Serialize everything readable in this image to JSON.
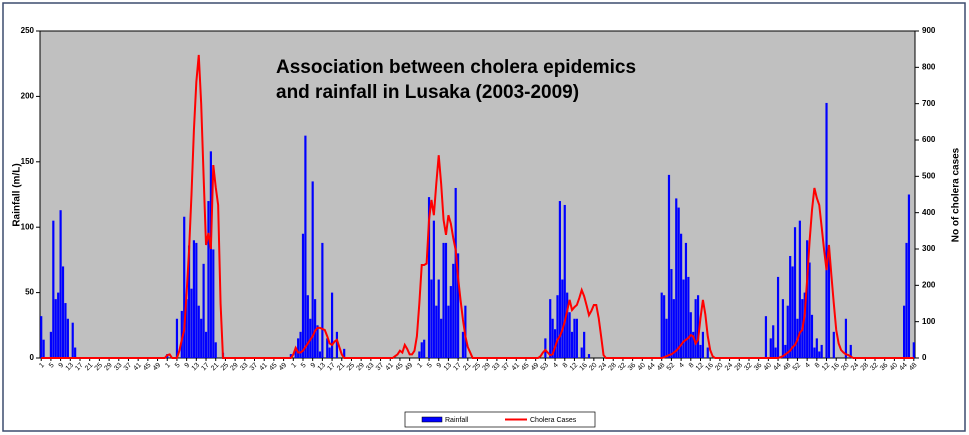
{
  "chart_data": {
    "type": "bar_line",
    "title_lines": [
      "Association between cholera epidemics",
      "and rainfall in Lusaka (2003-2009)"
    ],
    "y_label": "Rainfall (m/L)",
    "y2_label": "No of cholera cases",
    "ylim": [
      0,
      250
    ],
    "yticks": [
      0,
      50,
      100,
      150,
      200,
      250
    ],
    "y2lim": [
      0,
      900
    ],
    "y2ticks": [
      0,
      100,
      200,
      300,
      400,
      500,
      600,
      700,
      800,
      900
    ],
    "grid": false,
    "legend": "bottom",
    "categories": [
      1,
      null,
      null,
      null,
      5,
      null,
      null,
      null,
      9,
      null,
      null,
      null,
      13,
      null,
      null,
      null,
      17,
      null,
      null,
      null,
      21,
      null,
      null,
      null,
      25,
      null,
      null,
      null,
      29,
      null,
      null,
      null,
      33,
      null,
      null,
      null,
      37,
      null,
      null,
      null,
      41,
      null,
      null,
      null,
      45,
      null,
      null,
      null,
      49,
      null,
      null,
      null,
      1,
      null,
      null,
      null,
      5,
      null,
      null,
      null,
      9,
      null,
      null,
      null,
      13,
      null,
      null,
      null,
      17,
      null,
      null,
      null,
      21,
      null,
      null,
      null,
      25,
      null,
      null,
      null,
      29,
      null,
      null,
      null,
      33,
      null,
      null,
      null,
      37,
      null,
      null,
      null,
      41,
      null,
      null,
      null,
      45,
      null,
      null,
      null,
      49,
      null,
      null,
      null,
      1,
      null,
      null,
      null,
      5,
      null,
      null,
      null,
      9,
      null,
      null,
      null,
      13,
      null,
      null,
      null,
      17,
      null,
      null,
      null,
      21,
      null,
      null,
      null,
      25,
      null,
      null,
      null,
      29,
      null,
      null,
      null,
      33,
      null,
      null,
      null,
      37,
      null,
      null,
      null,
      41,
      null,
      null,
      null,
      45,
      null,
      null,
      null,
      49,
      null,
      null,
      null,
      1,
      null,
      null,
      null,
      5,
      null,
      null,
      null,
      9,
      null,
      null,
      null,
      13,
      null,
      null,
      null,
      17,
      null,
      null,
      null,
      21,
      null,
      null,
      null,
      25,
      null,
      null,
      null,
      29,
      null,
      null,
      null,
      33,
      null,
      null,
      null,
      37,
      null,
      null,
      null,
      41,
      null,
      null,
      null,
      45,
      null,
      null,
      null,
      49,
      null,
      null,
      null,
      53,
      null,
      null,
      null,
      4,
      null,
      null,
      null,
      8,
      null,
      null,
      null,
      12,
      null,
      null,
      null,
      16,
      null,
      null,
      null,
      20,
      null,
      null,
      null,
      24,
      null,
      null,
      null,
      28,
      null,
      null,
      null,
      32,
      null,
      null,
      null,
      36,
      null,
      null,
      null,
      40,
      null,
      null,
      null,
      44,
      null,
      null,
      null,
      48,
      null,
      null,
      null,
      52,
      null,
      null,
      null,
      4,
      null,
      null,
      null,
      8,
      null,
      null,
      null,
      12,
      null,
      null,
      null,
      16,
      null,
      null,
      null,
      20,
      null,
      null,
      null,
      24,
      null,
      null,
      null,
      28,
      null,
      null,
      null,
      32,
      null,
      null,
      null,
      36,
      null,
      null,
      null,
      40,
      null,
      null,
      null,
      44,
      null,
      null,
      null,
      48,
      null,
      null,
      null,
      52,
      null,
      null,
      null,
      4,
      null,
      null,
      null,
      8,
      null,
      null,
      null,
      12,
      null,
      null,
      null,
      16,
      null,
      null,
      null,
      20,
      null,
      null,
      null,
      24,
      null,
      null,
      null,
      28,
      null,
      null,
      null,
      32,
      null,
      null,
      null,
      36,
      null,
      null,
      null,
      40,
      null,
      null,
      null,
      44,
      null,
      null,
      null,
      48
    ],
    "series": [
      {
        "name": "Rainfall",
        "type": "bar",
        "color": "#0000ff",
        "values": [
          32,
          14,
          0,
          0,
          20,
          105,
          45,
          50,
          113,
          70,
          42,
          30,
          0,
          27,
          8,
          0,
          0,
          0,
          0,
          0,
          0,
          0,
          0,
          0,
          0,
          0,
          0,
          0,
          0,
          0,
          0,
          0,
          0,
          0,
          0,
          0,
          0,
          0,
          0,
          0,
          0,
          0,
          0,
          0,
          0,
          0,
          0,
          0,
          0,
          0,
          0,
          0,
          3,
          0,
          0,
          0,
          30,
          0,
          36,
          108,
          45,
          86,
          53,
          90,
          88,
          40,
          30,
          72,
          20,
          120,
          158,
          83,
          12,
          0,
          0,
          4,
          0,
          0,
          0,
          0,
          0,
          0,
          0,
          0,
          0,
          0,
          0,
          0,
          0,
          0,
          0,
          0,
          0,
          0,
          0,
          0,
          0,
          0,
          0,
          0,
          0,
          0,
          0,
          3,
          0,
          8,
          15,
          20,
          95,
          170,
          48,
          30,
          135,
          45,
          25,
          5,
          88,
          0,
          15,
          8,
          50,
          0,
          20,
          0,
          0,
          7,
          0,
          0,
          0,
          0,
          0,
          0,
          0,
          0,
          0,
          0,
          0,
          0,
          0,
          0,
          0,
          0,
          0,
          0,
          0,
          0,
          0,
          0,
          0,
          0,
          0,
          0,
          0,
          0,
          0,
          0,
          5,
          12,
          14,
          0,
          123,
          60,
          105,
          40,
          60,
          30,
          88,
          88,
          40,
          55,
          72,
          130,
          80,
          0,
          20,
          40,
          0,
          0,
          0,
          0,
          0,
          0,
          0,
          0,
          0,
          0,
          0,
          0,
          0,
          0,
          0,
          0,
          0,
          0,
          0,
          0,
          0,
          0,
          0,
          0,
          0,
          0,
          0,
          0,
          0,
          0,
          0,
          0,
          15,
          0,
          45,
          30,
          22,
          48,
          120,
          60,
          117,
          50,
          35,
          20,
          30,
          30,
          0,
          8,
          20,
          0,
          3,
          0,
          0,
          0,
          0,
          0,
          0,
          0,
          0,
          0,
          0,
          0,
          0,
          0,
          0,
          0,
          0,
          0,
          0,
          0,
          0,
          0,
          0,
          0,
          0,
          0,
          0,
          0,
          0,
          0,
          50,
          48,
          30,
          140,
          68,
          45,
          122,
          115,
          95,
          60,
          88,
          62,
          35,
          20,
          45,
          48,
          10,
          20,
          0,
          8,
          0,
          0,
          0,
          0,
          0,
          0,
          0,
          0,
          0,
          0,
          0,
          0,
          0,
          0,
          0,
          0,
          0,
          0,
          0,
          0,
          0,
          0,
          0,
          32,
          0,
          15,
          25,
          8,
          62,
          0,
          45,
          10,
          40,
          78,
          70,
          100,
          30,
          105,
          45,
          50,
          90,
          73,
          33,
          8,
          15,
          5,
          10,
          0,
          195,
          83,
          0,
          20,
          0,
          0,
          0,
          0,
          30,
          0,
          10,
          0,
          0,
          0,
          0,
          0,
          0,
          0,
          0,
          0,
          0,
          0,
          0,
          0,
          0,
          0,
          0,
          0,
          0,
          0,
          0,
          0,
          40,
          88,
          125,
          0,
          12
        ]
      },
      {
        "name": "Cholera Cases",
        "type": "line",
        "axis": "y2",
        "color": "#ff0000",
        "values": [
          0,
          0,
          0,
          0,
          0,
          0,
          0,
          0,
          0,
          0,
          0,
          0,
          0,
          0,
          0,
          0,
          0,
          0,
          0,
          0,
          0,
          0,
          0,
          0,
          0,
          0,
          0,
          0,
          0,
          0,
          0,
          0,
          0,
          0,
          0,
          0,
          0,
          0,
          0,
          0,
          0,
          0,
          0,
          0,
          0,
          0,
          0,
          0,
          0,
          0,
          0,
          0,
          8,
          10,
          0,
          0,
          0,
          20,
          50,
          77,
          180,
          297,
          450,
          627,
          760,
          834,
          700,
          500,
          311,
          344,
          300,
          531,
          470,
          421,
          150,
          0,
          0,
          0,
          0,
          0,
          0,
          0,
          0,
          0,
          0,
          0,
          0,
          0,
          0,
          0,
          0,
          0,
          0,
          0,
          0,
          0,
          0,
          0,
          0,
          0,
          0,
          0,
          0,
          0,
          10,
          28,
          15,
          15,
          20,
          30,
          40,
          50,
          60,
          75,
          83,
          83,
          80,
          77,
          60,
          40,
          36,
          45,
          50,
          30,
          10,
          0,
          0,
          0,
          0,
          0,
          0,
          0,
          0,
          0,
          0,
          0,
          0,
          0,
          0,
          0,
          0,
          0,
          0,
          0,
          0,
          0,
          5,
          10,
          20,
          15,
          36,
          25,
          10,
          10,
          20,
          60,
          150,
          256,
          256,
          260,
          380,
          435,
          393,
          480,
          558,
          480,
          380,
          339,
          393,
          370,
          330,
          297,
          220,
          160,
          105,
          60,
          30,
          15,
          0,
          0,
          0,
          0,
          0,
          0,
          0,
          0,
          0,
          0,
          0,
          0,
          0,
          0,
          0,
          0,
          0,
          0,
          0,
          0,
          0,
          0,
          0,
          0,
          0,
          0,
          0,
          0,
          5,
          15,
          22,
          15,
          8,
          10,
          30,
          50,
          60,
          77,
          100,
          130,
          160,
          132,
          140,
          146,
          165,
          187,
          170,
          145,
          118,
          130,
          146,
          146,
          110,
          60,
          8,
          0,
          0,
          0,
          0,
          0,
          0,
          0,
          0,
          0,
          0,
          0,
          0,
          0,
          0,
          0,
          0,
          0,
          0,
          0,
          0,
          0,
          0,
          0,
          0,
          2,
          5,
          8,
          10,
          15,
          20,
          28,
          36,
          45,
          50,
          55,
          63,
          60,
          40,
          50,
          110,
          160,
          120,
          60,
          22,
          5,
          0,
          0,
          0,
          0,
          0,
          0,
          0,
          0,
          0,
          0,
          0,
          0,
          0,
          0,
          0,
          0,
          0,
          0,
          0,
          0,
          0,
          0,
          0,
          0,
          0,
          0,
          0,
          2,
          5,
          10,
          15,
          20,
          30,
          36,
          50,
          70,
          77,
          120,
          215,
          320,
          407,
          468,
          440,
          421,
          360,
          297,
          242,
          311,
          228,
          150,
          77,
          40,
          22,
          15,
          10,
          8,
          4,
          0,
          0,
          0,
          0,
          0,
          0,
          0,
          0,
          0,
          0,
          0,
          0,
          0,
          0,
          0,
          0,
          0,
          0,
          0,
          0,
          0,
          0,
          0,
          0,
          0,
          0
        ]
      }
    ]
  }
}
